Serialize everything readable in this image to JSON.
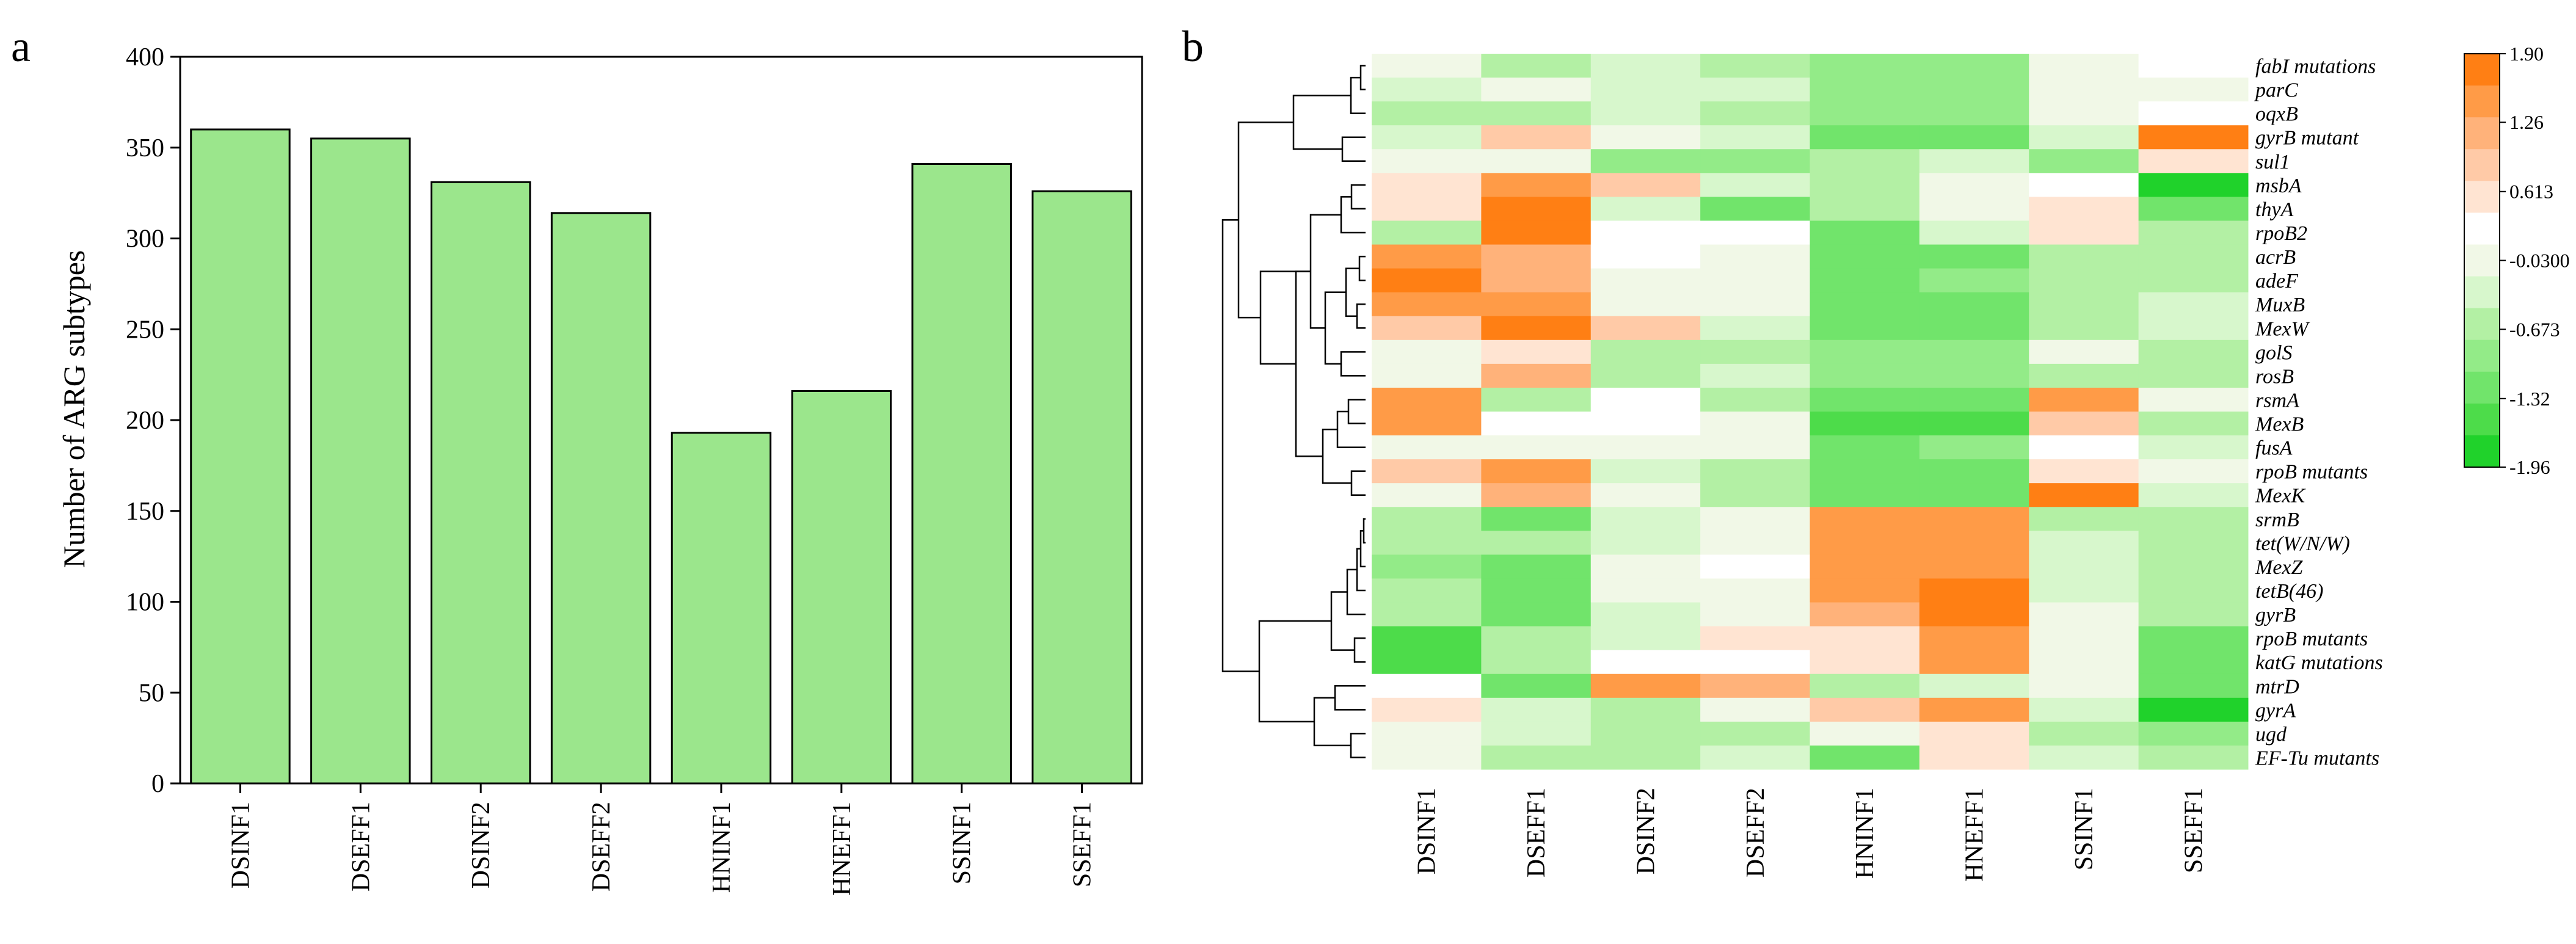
{
  "panel_a_label": "a",
  "panel_b_label": "b",
  "chart_data": [
    {
      "type": "bar",
      "title": "",
      "xlabel": "",
      "ylabel": "Number of ARG subtypes",
      "ylim": [
        0,
        400
      ],
      "yticks": [
        0,
        50,
        100,
        150,
        200,
        250,
        300,
        350,
        400
      ],
      "categories": [
        "DSINF1",
        "DSEFF1",
        "DSINF2",
        "DSEFF2",
        "HNINF1",
        "HNEFF1",
        "SSINF1",
        "SSEFF1"
      ],
      "values": [
        360,
        355,
        331,
        314,
        193,
        216,
        341,
        326
      ],
      "bar_color": "#9be68c",
      "edge_color": "#000000"
    },
    {
      "type": "heatmap",
      "title": "",
      "columns": [
        "DSINF1",
        "DSEFF1",
        "DSINF2",
        "DSEFF2",
        "HNINF1",
        "HNEFF1",
        "SSINF1",
        "SSEFF1"
      ],
      "rows": [
        "fabI mutations",
        "parC",
        "oqxB",
        "gyrB mutant",
        "sul1",
        "msbA",
        "thyA",
        "rpoB2",
        "acrB",
        "adeF",
        "MuxB",
        "MexW",
        "golS",
        "rosB",
        "rsmA",
        "MexB",
        "fusA",
        "rpoB mutants",
        "MexK",
        "srmB",
        "tet(W/N/W)",
        "MexZ",
        "tetB(46)",
        "gyrB",
        "rpoB mutants",
        "katG mutations",
        "mtrD",
        "gyrA",
        "ugd",
        "EF-Tu mutants"
      ],
      "values": [
        [
          0,
          -0.6,
          -0.3,
          -0.7,
          -1.0,
          -1.0,
          0,
          0.3
        ],
        [
          -0.2,
          0,
          -0.3,
          -0.4,
          -1.0,
          -1.0,
          0,
          0
        ],
        [
          -0.6,
          -0.6,
          -0.3,
          -0.7,
          -1.0,
          -1.0,
          0,
          0.3
        ],
        [
          -0.4,
          0.9,
          0,
          -0.3,
          -1.3,
          -1.3,
          -0.3,
          1.9
        ],
        [
          0,
          0,
          -1.0,
          -1.0,
          -0.7,
          -0.3,
          -1.0,
          0.7
        ],
        [
          0.7,
          1.6,
          0.9,
          -0.3,
          -0.7,
          0,
          0.3,
          -1.96
        ],
        [
          0.7,
          1.9,
          -0.3,
          -1.2,
          -0.7,
          0,
          0.6,
          -1.3
        ],
        [
          -0.7,
          1.9,
          0.3,
          0.3,
          -1.3,
          -0.3,
          0.6,
          -0.7
        ],
        [
          1.6,
          1.3,
          0.3,
          0,
          -1.3,
          -1.2,
          -0.6,
          -0.6
        ],
        [
          1.9,
          1.3,
          0,
          0,
          -1.3,
          -1.0,
          -0.6,
          -0.6
        ],
        [
          1.6,
          1.6,
          0,
          0,
          -1.3,
          -1.2,
          -0.6,
          -0.3
        ],
        [
          1.0,
          1.9,
          1.0,
          -0.3,
          -1.3,
          -1.2,
          -0.6,
          -0.3
        ],
        [
          0,
          0.6,
          -0.6,
          -0.6,
          -1.0,
          -1.0,
          0,
          -0.6
        ],
        [
          0,
          1.3,
          -0.6,
          -0.3,
          -1.0,
          -1.0,
          -0.6,
          -0.6
        ],
        [
          1.6,
          -0.6,
          0.4,
          -0.6,
          -1.3,
          -1.3,
          1.6,
          0
        ],
        [
          1.6,
          0.4,
          0.4,
          0,
          -1.6,
          -1.6,
          1.0,
          -0.6
        ],
        [
          0,
          0,
          0,
          0,
          -1.3,
          -1.0,
          0.4,
          -0.3
        ],
        [
          1.0,
          1.6,
          -0.3,
          -0.6,
          -1.3,
          -1.3,
          0.7,
          0
        ],
        [
          0,
          1.3,
          0,
          -0.6,
          -1.3,
          -1.3,
          1.9,
          -0.3
        ],
        [
          -0.7,
          -1.3,
          -0.3,
          0,
          1.6,
          1.6,
          -0.6,
          -0.7
        ],
        [
          -0.7,
          -0.7,
          -0.3,
          0,
          1.6,
          1.6,
          -0.3,
          -0.7
        ],
        [
          -1.0,
          -1.3,
          0,
          0.3,
          1.6,
          1.6,
          -0.3,
          -0.7
        ],
        [
          -0.7,
          -1.3,
          0,
          0,
          1.6,
          1.9,
          -0.3,
          -0.7
        ],
        [
          -0.7,
          -1.3,
          -0.3,
          0,
          1.3,
          1.9,
          0,
          -0.7
        ],
        [
          -1.6,
          -0.6,
          -0.3,
          0.7,
          0.7,
          1.6,
          0,
          -1.3
        ],
        [
          -1.6,
          -0.7,
          0.3,
          0.3,
          0.7,
          1.6,
          0,
          -1.3
        ],
        [
          0.4,
          -1.3,
          1.6,
          1.3,
          -0.6,
          -0.3,
          0,
          -1.3
        ],
        [
          0.7,
          -0.3,
          -0.6,
          0,
          1.0,
          1.6,
          -0.3,
          -1.96
        ],
        [
          0,
          -0.3,
          -0.6,
          -0.6,
          0,
          0.6,
          -0.7,
          -1.0
        ],
        [
          0,
          -0.6,
          -0.6,
          -0.3,
          -1.3,
          0.6,
          -0.3,
          -0.6
        ]
      ],
      "color_scale": {
        "min": -1.96,
        "max": 1.9,
        "ticks": [
          "1.90",
          "1.26",
          "0.613",
          "-0.0300",
          "-0.673",
          "-1.32",
          "-1.96"
        ],
        "tick_values": [
          1.9,
          1.26,
          0.613,
          -0.03,
          -0.673,
          -1.32,
          -1.96
        ],
        "colors_high_to_low": [
          "#ff7f14",
          "#ff9b47",
          "#ffb27a",
          "#ffcaa7",
          "#ffe4d2",
          "#ffffff",
          "#f1f8e7",
          "#d7f7cc",
          "#b3f0a4",
          "#93eb88",
          "#71e46b",
          "#4ddc4a",
          "#20d22b"
        ]
      },
      "legend_position": "top-right"
    }
  ]
}
